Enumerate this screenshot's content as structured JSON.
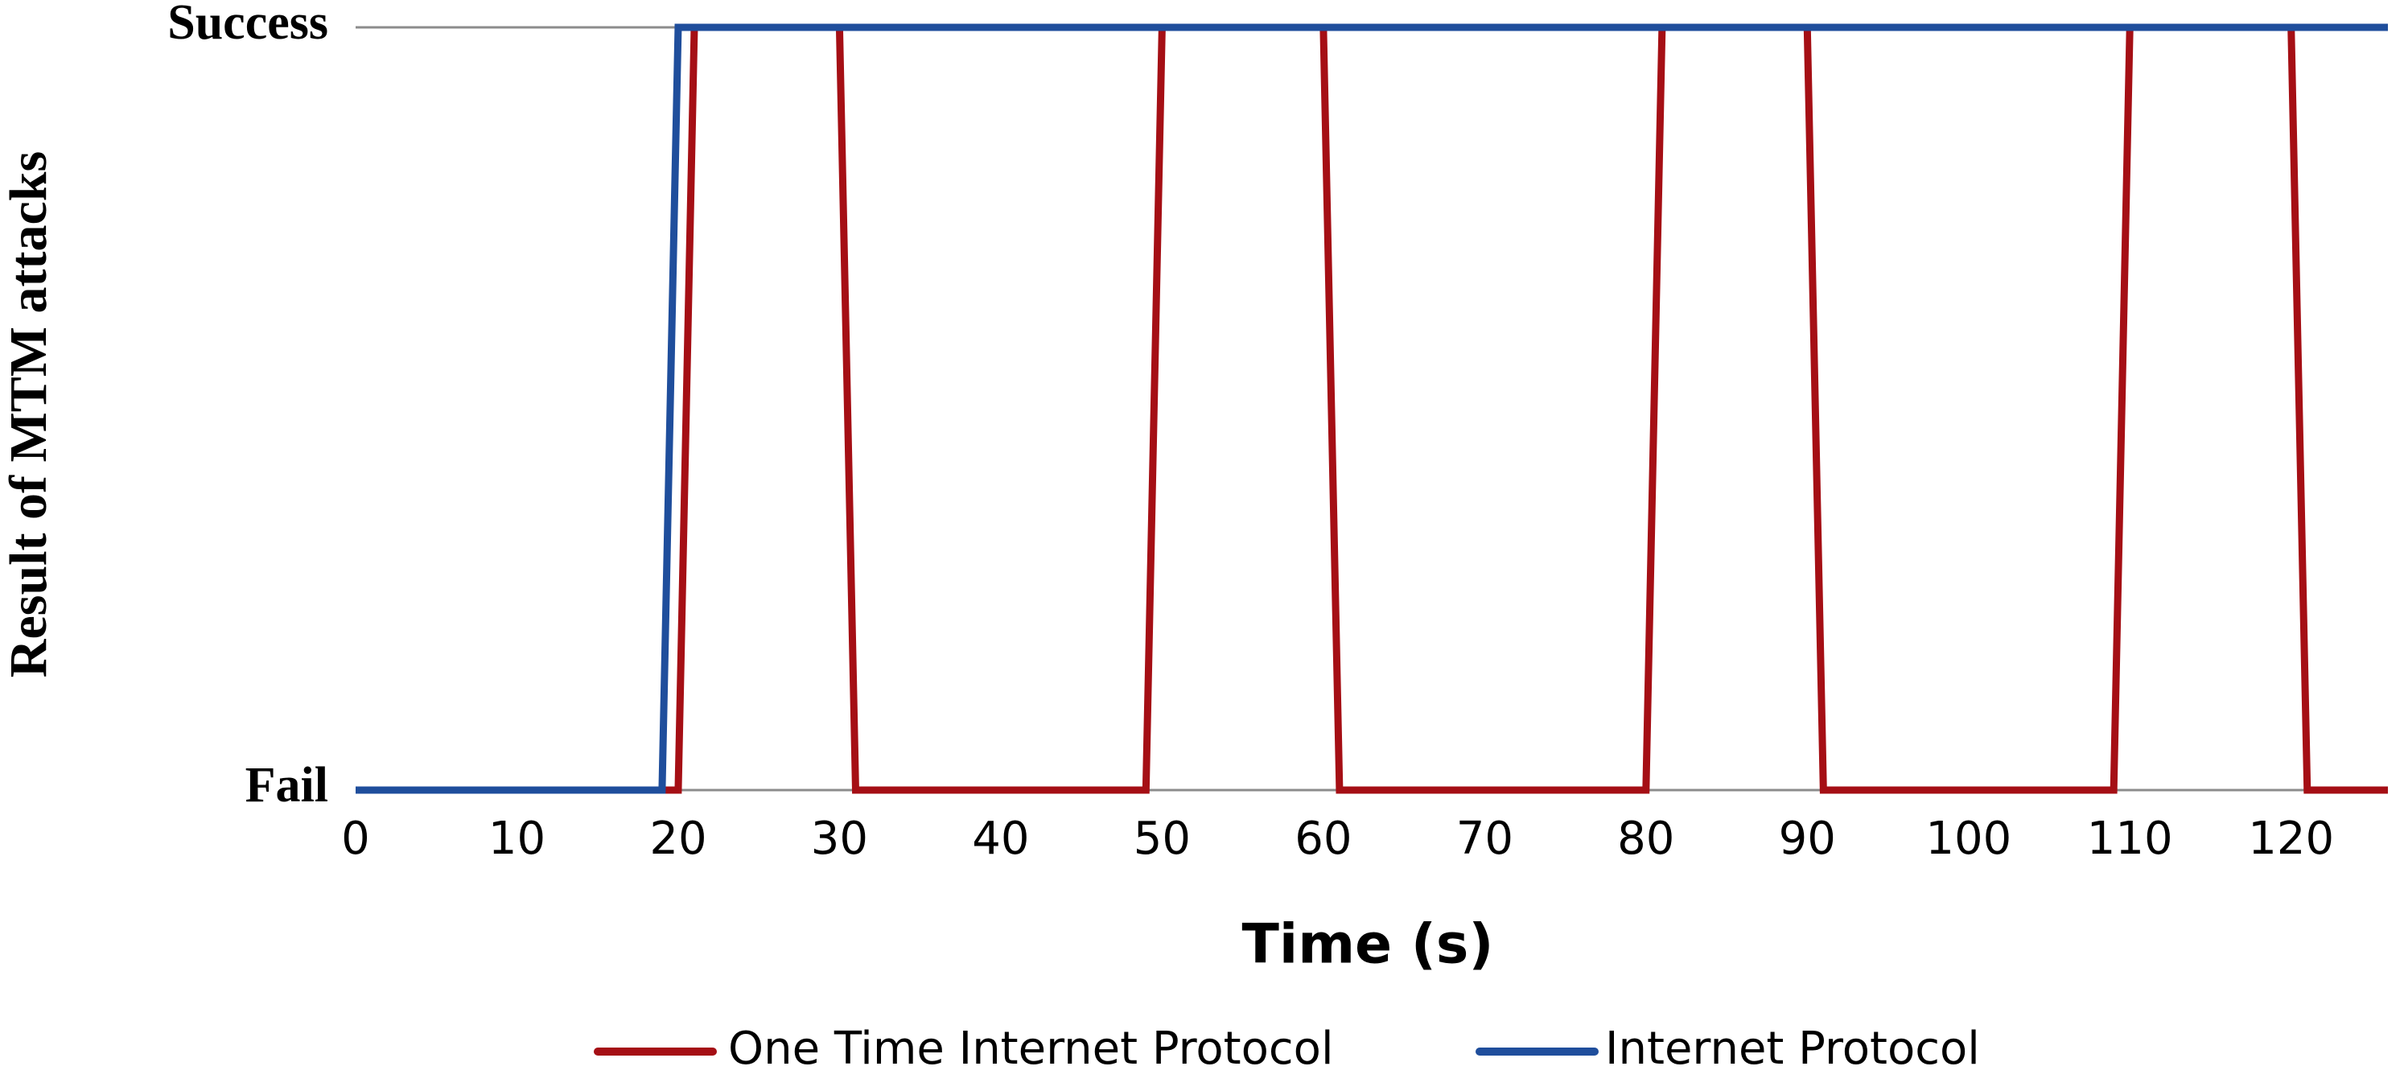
{
  "chart_data": {
    "type": "line",
    "x_label": "Time (s)",
    "y_label": "Result of MTM attacks",
    "xlim": [
      0,
      126
    ],
    "xticks": [
      0,
      10,
      20,
      30,
      40,
      50,
      60,
      70,
      80,
      90,
      100,
      110,
      120
    ],
    "ylim": [
      0,
      1
    ],
    "yticks": [
      {
        "value": 0,
        "label": "Fail"
      },
      {
        "value": 1,
        "label": "Success"
      }
    ],
    "grid": true,
    "series": [
      {
        "name": "One Time Internet Protocol",
        "color": "#a50f15",
        "x": [
          0,
          20,
          21,
          30,
          31,
          49,
          50,
          60,
          61,
          80,
          81,
          90,
          91,
          109,
          110,
          120,
          121,
          126
        ],
        "values": [
          0,
          0,
          1,
          1,
          0,
          0,
          1,
          1,
          0,
          0,
          1,
          1,
          0,
          0,
          1,
          1,
          0,
          0
        ]
      },
      {
        "name": "Internet Protocol",
        "color": "#1f4e9c",
        "x": [
          0,
          19,
          20,
          126
        ],
        "values": [
          0,
          0,
          1,
          1
        ]
      }
    ]
  }
}
